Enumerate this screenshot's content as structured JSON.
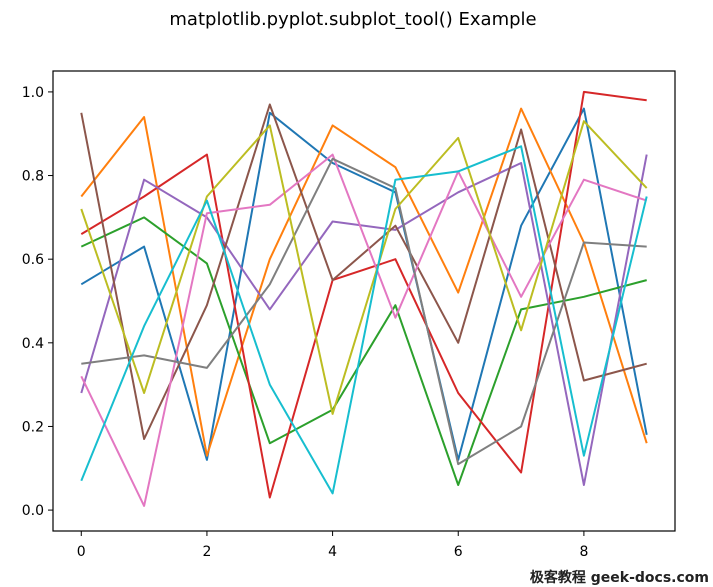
{
  "chart_data": {
    "type": "line",
    "title": "matplotlib.pyplot.subplot_tool() Example",
    "xlabel": "",
    "ylabel": "",
    "x": [
      0,
      1,
      2,
      3,
      4,
      5,
      6,
      7,
      8,
      9
    ],
    "xlim": [
      -0.45,
      9.45
    ],
    "ylim": [
      -0.05,
      1.05
    ],
    "xticks": [
      0,
      2,
      4,
      6,
      8
    ],
    "xtick_labels": [
      "0",
      "2",
      "4",
      "6",
      "8"
    ],
    "yticks": [
      0.0,
      0.2,
      0.4,
      0.6,
      0.8,
      1.0
    ],
    "ytick_labels": [
      "0.0",
      "0.2",
      "0.4",
      "0.6",
      "0.8",
      "1.0"
    ],
    "grid": false,
    "series": [
      {
        "color": "#1f77b4",
        "values": [
          0.54,
          0.63,
          0.12,
          0.95,
          0.83,
          0.76,
          0.12,
          0.68,
          0.96,
          0.18
        ]
      },
      {
        "color": "#ff7f0e",
        "values": [
          0.75,
          0.94,
          0.13,
          0.6,
          0.92,
          0.82,
          0.52,
          0.96,
          0.64,
          0.16
        ]
      },
      {
        "color": "#2ca02c",
        "values": [
          0.63,
          0.7,
          0.59,
          0.16,
          0.24,
          0.49,
          0.06,
          0.48,
          0.51,
          0.55
        ]
      },
      {
        "color": "#d62728",
        "values": [
          0.66,
          0.75,
          0.85,
          0.03,
          0.55,
          0.6,
          0.28,
          0.09,
          1.0,
          0.98
        ]
      },
      {
        "color": "#9467bd",
        "values": [
          0.28,
          0.79,
          0.7,
          0.48,
          0.69,
          0.67,
          0.76,
          0.83,
          0.06,
          0.85
        ]
      },
      {
        "color": "#8c564b",
        "values": [
          0.95,
          0.17,
          0.49,
          0.97,
          0.55,
          0.68,
          0.4,
          0.91,
          0.31,
          0.35
        ]
      },
      {
        "color": "#e377c2",
        "values": [
          0.32,
          0.01,
          0.71,
          0.73,
          0.85,
          0.46,
          0.81,
          0.51,
          0.79,
          0.74
        ]
      },
      {
        "color": "#7f7f7f",
        "values": [
          0.35,
          0.37,
          0.34,
          0.54,
          0.84,
          0.77,
          0.11,
          0.2,
          0.64,
          0.63
        ]
      },
      {
        "color": "#bcbd22",
        "values": [
          0.72,
          0.28,
          0.75,
          0.92,
          0.23,
          0.72,
          0.89,
          0.43,
          0.93,
          0.77
        ]
      },
      {
        "color": "#17becf",
        "values": [
          0.07,
          0.44,
          0.74,
          0.3,
          0.04,
          0.79,
          0.81,
          0.87,
          0.13,
          0.75
        ]
      }
    ]
  },
  "watermark": {
    "text": "极客教程 geek-docs.com"
  }
}
